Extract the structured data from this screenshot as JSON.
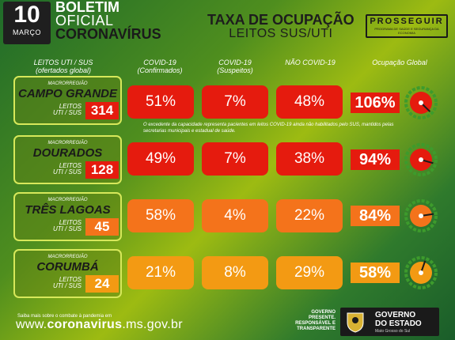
{
  "header": {
    "day": "10",
    "month": "MARÇO",
    "bulletin_line1": "BOLETIM",
    "bulletin_line2": "OFICIAL",
    "bulletin_line3": "CORONAVÍRUS",
    "title_line1": "TAXA DE OCUPAÇÃO",
    "title_line2": "LEITOS SUS/UTI",
    "program": "PROSSEGUIR",
    "program_sub": "PROGRAMA DE SAÚDE E SEGURANÇA DA ECONOMIA"
  },
  "columns": {
    "leitos_line1": "LEITOS UTI / SUS",
    "leitos_line2": "(ofertados global)",
    "covid_conf_line1": "COVID-19",
    "covid_conf_line2": "(Confirmados)",
    "covid_susp_line1": "COVID-19",
    "covid_susp_line2": "(Suspeitos)",
    "nao_covid": "NÃO COVID-19",
    "global": "Ocupação Global"
  },
  "regions": [
    {
      "macro": "MACRORREGIÃO",
      "name": "CAMPO GRANDE",
      "leitos_label_1": "LEITOS",
      "leitos_label_2": "UTI / SUS",
      "leitos": "314",
      "confirmed": "51%",
      "suspected": "7%",
      "non_covid": "48%",
      "global": "106%",
      "global_value": 106
    },
    {
      "macro": "MACRORREGIÃO",
      "name": "DOURADOS",
      "leitos_label_1": "LEITOS",
      "leitos_label_2": "UTI / SUS",
      "leitos": "128",
      "confirmed": "49%",
      "suspected": "7%",
      "non_covid": "38%",
      "global": "94%",
      "global_value": 94
    },
    {
      "macro": "MACRORREGIÃO",
      "name": "TRÊS LAGOAS",
      "leitos_label_1": "LEITOS",
      "leitos_label_2": "UTI / SUS",
      "leitos": "45",
      "confirmed": "58%",
      "suspected": "4%",
      "non_covid": "22%",
      "global": "84%",
      "global_value": 84
    },
    {
      "macro": "MACRORREGIÃO",
      "name": "CORUMBÁ",
      "leitos_label_1": "LEITOS",
      "leitos_label_2": "UTI / SUS",
      "leitos": "24",
      "confirmed": "21%",
      "suspected": "8%",
      "non_covid": "29%",
      "global": "58%",
      "global_value": 58
    }
  ],
  "note": "O excedente da capacidade representa pacientes em leitos COVID-19 ainda não habilitados pelo SUS, mantidos pelas secretarias municipais e estadual de saúde.",
  "footer": {
    "small": "Saiba mais sobre o combate à pandemia em",
    "url_prefix": "www.",
    "url_bold": "coronavirus",
    "url_suffix": ".ms.gov.br",
    "gov_slogan_1": "GOVERNO",
    "gov_slogan_2": "PRESENTE.",
    "gov_slogan_3": "RESPONSÁVEL E",
    "gov_slogan_4": "TRANSPARENTE",
    "gov_line1": "GOVERNO",
    "gov_line2": "DO ESTADO",
    "gov_line3": "Mato Grosso do Sul"
  },
  "colors": {
    "red": "#e51b0e",
    "orange": "#f4731b",
    "amber": "#f39a13",
    "region_border": "#d7e85a"
  }
}
